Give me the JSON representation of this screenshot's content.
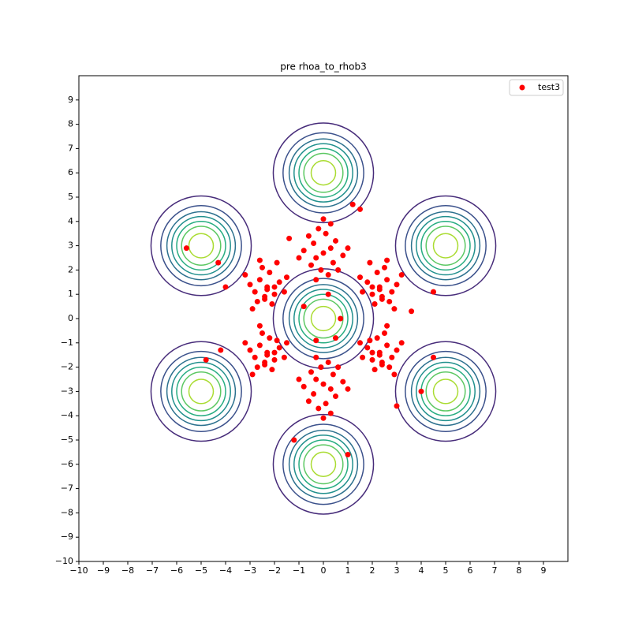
{
  "chart_data": {
    "type": "scatter",
    "title": "pre rhoa_to_rhob3",
    "xlim": [
      -10,
      10
    ],
    "ylim": [
      -10,
      10
    ],
    "xticks": [
      {
        "value": -10,
        "label": "−10"
      },
      {
        "value": -9,
        "label": "−9"
      },
      {
        "value": -8,
        "label": "−8"
      },
      {
        "value": -7,
        "label": "−7"
      },
      {
        "value": -6,
        "label": "−6"
      },
      {
        "value": -5,
        "label": "−5"
      },
      {
        "value": -4,
        "label": "−4"
      },
      {
        "value": -3,
        "label": "−3"
      },
      {
        "value": -2,
        "label": "−2"
      },
      {
        "value": -1,
        "label": "−1"
      },
      0,
      1,
      2,
      3,
      4,
      5,
      6,
      7,
      8,
      9
    ],
    "yticks": [
      {
        "value": -10,
        "label": "−10"
      },
      {
        "value": -9,
        "label": "−9"
      },
      {
        "value": -8,
        "label": "−8"
      },
      {
        "value": -7,
        "label": "−7"
      },
      {
        "value": -6,
        "label": "−6"
      },
      {
        "value": -5,
        "label": "−5"
      },
      {
        "value": -4,
        "label": "−4"
      },
      {
        "value": -3,
        "label": "−3"
      },
      {
        "value": -2,
        "label": "−2"
      },
      {
        "value": -1,
        "label": "−1"
      },
      0,
      1,
      2,
      3,
      4,
      5,
      6,
      7,
      8,
      9
    ],
    "legend": "upper right",
    "contours": {
      "centers": [
        [
          0,
          0
        ],
        [
          0,
          6
        ],
        [
          0,
          -6
        ],
        [
          5,
          3
        ],
        [
          5,
          -3
        ],
        [
          -5,
          3
        ],
        [
          -5,
          -3
        ]
      ],
      "radii": [
        2.05,
        1.65,
        1.4,
        1.2,
        1.0,
        0.8,
        0.5
      ],
      "colors": [
        "#472c7a",
        "#3b518b",
        "#2c718e",
        "#21908d",
        "#27ad81",
        "#5cc863",
        "#aadc32"
      ]
    },
    "series": [
      {
        "name": "test3",
        "color": "#ff0000",
        "x": [
          0.0,
          0.3,
          -0.3,
          0.5,
          -0.5,
          0.1,
          -0.1,
          0.8,
          -0.8,
          0.4,
          -0.4,
          0.2,
          -0.2,
          0.6,
          -0.6,
          1.0,
          -1.0,
          0.0,
          0.3,
          -0.3,
          2.3,
          2.6,
          2.0,
          2.8,
          1.8,
          2.4,
          2.2,
          3.0,
          1.6,
          2.5,
          2.1,
          2.7,
          1.9,
          3.2,
          2.3,
          1.5,
          2.9,
          2.0,
          2.6,
          2.4,
          2.3,
          2.6,
          2.0,
          2.8,
          1.8,
          2.4,
          2.2,
          3.0,
          1.6,
          2.5,
          2.1,
          2.7,
          1.9,
          3.2,
          2.3,
          1.5,
          2.9,
          2.0,
          2.6,
          2.4,
          0.0,
          0.3,
          -0.3,
          0.5,
          -0.5,
          0.1,
          -0.1,
          0.8,
          -0.8,
          0.4,
          -0.4,
          0.2,
          -0.2,
          0.6,
          -0.6,
          1.0,
          -1.0,
          0.0,
          0.3,
          -0.3,
          -2.3,
          -2.6,
          -2.0,
          -2.8,
          -1.8,
          -2.4,
          -2.2,
          -3.0,
          -1.6,
          -2.5,
          -2.1,
          -2.7,
          -1.9,
          -3.2,
          -2.3,
          -1.5,
          -2.9,
          -2.0,
          -2.6,
          -2.4,
          -2.3,
          -2.6,
          -2.0,
          -2.8,
          -1.8,
          -2.4,
          -2.2,
          -3.0,
          -1.6,
          -2.5,
          -2.1,
          -2.7,
          -1.9,
          -3.2,
          -2.3,
          -1.5,
          -2.9,
          -2.0,
          -2.6,
          -2.4,
          -5.6,
          -4.3,
          -4.0,
          -4.8,
          -1.2,
          1.0,
          4.0,
          4.5,
          3.6,
          4.5,
          1.2,
          1.5,
          -4.2,
          3.0,
          0.7,
          -0.8,
          0.5,
          0.2,
          -0.3,
          -1.4
        ],
        "y": [
          2.7,
          2.9,
          2.5,
          3.2,
          2.2,
          3.5,
          2.0,
          2.6,
          2.8,
          2.3,
          3.1,
          1.8,
          3.7,
          2.0,
          3.4,
          2.9,
          2.5,
          4.1,
          3.9,
          1.6,
          1.3,
          1.6,
          1.0,
          1.1,
          1.5,
          0.8,
          1.9,
          1.4,
          1.1,
          2.1,
          0.6,
          0.7,
          2.3,
          1.8,
          1.2,
          1.7,
          0.4,
          1.3,
          2.4,
          0.9,
          -1.4,
          -1.1,
          -1.7,
          -1.6,
          -1.2,
          -1.9,
          -0.8,
          -1.3,
          -1.6,
          -0.6,
          -2.1,
          -2.0,
          -0.9,
          -1.0,
          -1.5,
          -1.0,
          -2.3,
          -1.4,
          -0.3,
          -1.8,
          -2.7,
          -2.9,
          -2.5,
          -3.2,
          -2.2,
          -3.5,
          -2.0,
          -2.6,
          -2.8,
          -2.3,
          -3.1,
          -1.8,
          -3.7,
          -2.0,
          -3.4,
          -2.9,
          -2.5,
          -4.1,
          -3.9,
          -1.6,
          -1.4,
          -1.1,
          -1.7,
          -1.6,
          -1.2,
          -1.9,
          -0.8,
          -1.3,
          -1.6,
          -0.6,
          -2.1,
          -2.0,
          -0.9,
          -1.0,
          -1.5,
          -1.0,
          -2.3,
          -1.4,
          -0.3,
          -1.8,
          1.3,
          1.6,
          1.0,
          1.1,
          1.5,
          0.8,
          1.9,
          1.4,
          1.1,
          2.1,
          0.6,
          0.7,
          2.3,
          1.8,
          1.2,
          1.7,
          0.4,
          1.3,
          2.4,
          0.9,
          2.9,
          2.3,
          1.3,
          -1.7,
          -5.0,
          -5.6,
          -3.0,
          -1.6,
          0.3,
          1.1,
          4.7,
          4.5,
          -1.3,
          -3.6,
          0.0,
          0.5,
          -0.8,
          1.0,
          -0.9,
          3.3
        ]
      }
    ]
  }
}
